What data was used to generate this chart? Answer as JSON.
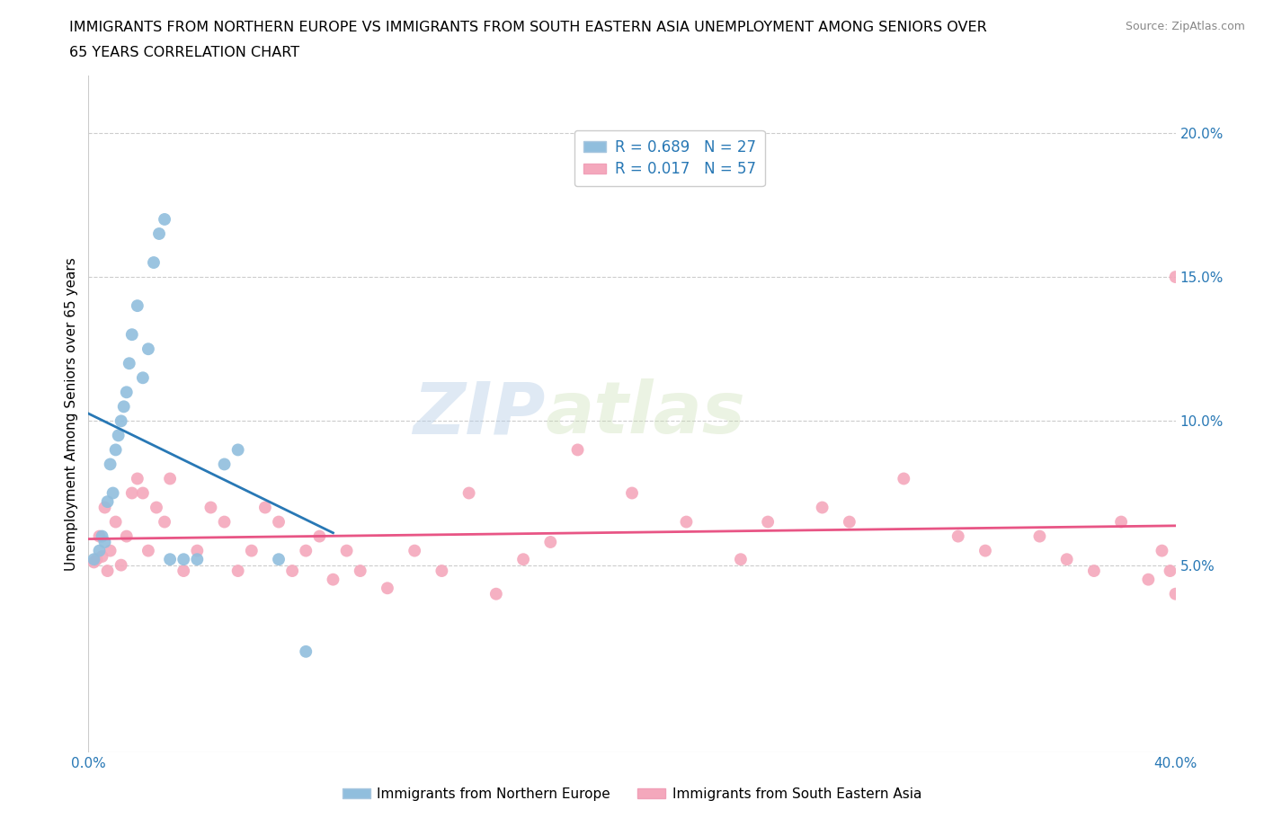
{
  "title_line1": "IMMIGRANTS FROM NORTHERN EUROPE VS IMMIGRANTS FROM SOUTH EASTERN ASIA UNEMPLOYMENT AMONG SENIORS OVER",
  "title_line2": "65 YEARS CORRELATION CHART",
  "source": "Source: ZipAtlas.com",
  "ylabel": "Unemployment Among Seniors over 65 years",
  "watermark_zip": "ZIP",
  "watermark_atlas": "atlas",
  "blue_label": "Immigrants from Northern Europe",
  "pink_label": "Immigrants from South Eastern Asia",
  "blue_R": "0.689",
  "blue_N": "27",
  "pink_R": "0.017",
  "pink_N": "57",
  "blue_color": "#a8cce4",
  "pink_color": "#f5b8c8",
  "blue_line_color": "#2878b5",
  "pink_line_color": "#e85585",
  "blue_scatter_color": "#90bedd",
  "pink_scatter_color": "#f4a8bc",
  "blue_x": [
    0.2,
    0.4,
    0.5,
    0.6,
    0.7,
    0.8,
    0.9,
    1.0,
    1.1,
    1.2,
    1.3,
    1.4,
    1.5,
    1.6,
    1.8,
    2.0,
    2.2,
    2.4,
    2.6,
    2.8,
    3.0,
    3.5,
    4.0,
    5.0,
    5.5,
    7.0,
    8.0
  ],
  "blue_y": [
    5.2,
    5.5,
    6.0,
    5.8,
    7.2,
    8.5,
    7.5,
    9.0,
    9.5,
    10.0,
    10.5,
    11.0,
    12.0,
    13.0,
    14.0,
    11.5,
    12.5,
    15.5,
    16.5,
    17.0,
    5.2,
    5.2,
    5.2,
    8.5,
    9.0,
    5.2,
    2.0
  ],
  "pink_x": [
    0.2,
    0.3,
    0.4,
    0.5,
    0.6,
    0.7,
    0.8,
    1.0,
    1.2,
    1.4,
    1.6,
    1.8,
    2.0,
    2.2,
    2.5,
    2.8,
    3.0,
    3.5,
    4.0,
    4.5,
    5.0,
    5.5,
    6.0,
    6.5,
    7.0,
    7.5,
    8.0,
    8.5,
    9.0,
    9.5,
    10.0,
    11.0,
    12.0,
    13.0,
    14.0,
    15.0,
    16.0,
    17.0,
    18.0,
    20.0,
    22.0,
    24.0,
    25.0,
    27.0,
    28.0,
    30.0,
    32.0,
    33.0,
    35.0,
    36.0,
    37.0,
    38.0,
    39.0,
    39.5,
    39.8,
    40.0,
    40.0
  ],
  "pink_y": [
    5.1,
    5.2,
    6.0,
    5.3,
    7.0,
    4.8,
    5.5,
    6.5,
    5.0,
    6.0,
    7.5,
    8.0,
    7.5,
    5.5,
    7.0,
    6.5,
    8.0,
    4.8,
    5.5,
    7.0,
    6.5,
    4.8,
    5.5,
    7.0,
    6.5,
    4.8,
    5.5,
    6.0,
    4.5,
    5.5,
    4.8,
    4.2,
    5.5,
    4.8,
    7.5,
    4.0,
    5.2,
    5.8,
    9.0,
    7.5,
    6.5,
    5.2,
    6.5,
    7.0,
    6.5,
    8.0,
    6.0,
    5.5,
    6.0,
    5.2,
    4.8,
    6.5,
    4.5,
    5.5,
    4.8,
    4.0,
    15.0
  ],
  "xlim": [
    0,
    40
  ],
  "ylim": [
    -1.5,
    22
  ],
  "yticks": [
    5,
    10,
    15,
    20
  ],
  "ytick_labels": [
    "5.0%",
    "10.0%",
    "15.0%",
    "20.0%"
  ],
  "xtick_positions": [
    0,
    10,
    20,
    30,
    40
  ],
  "xtick_labels": [
    "0.0%",
    "",
    "",
    "",
    "40.0%"
  ]
}
